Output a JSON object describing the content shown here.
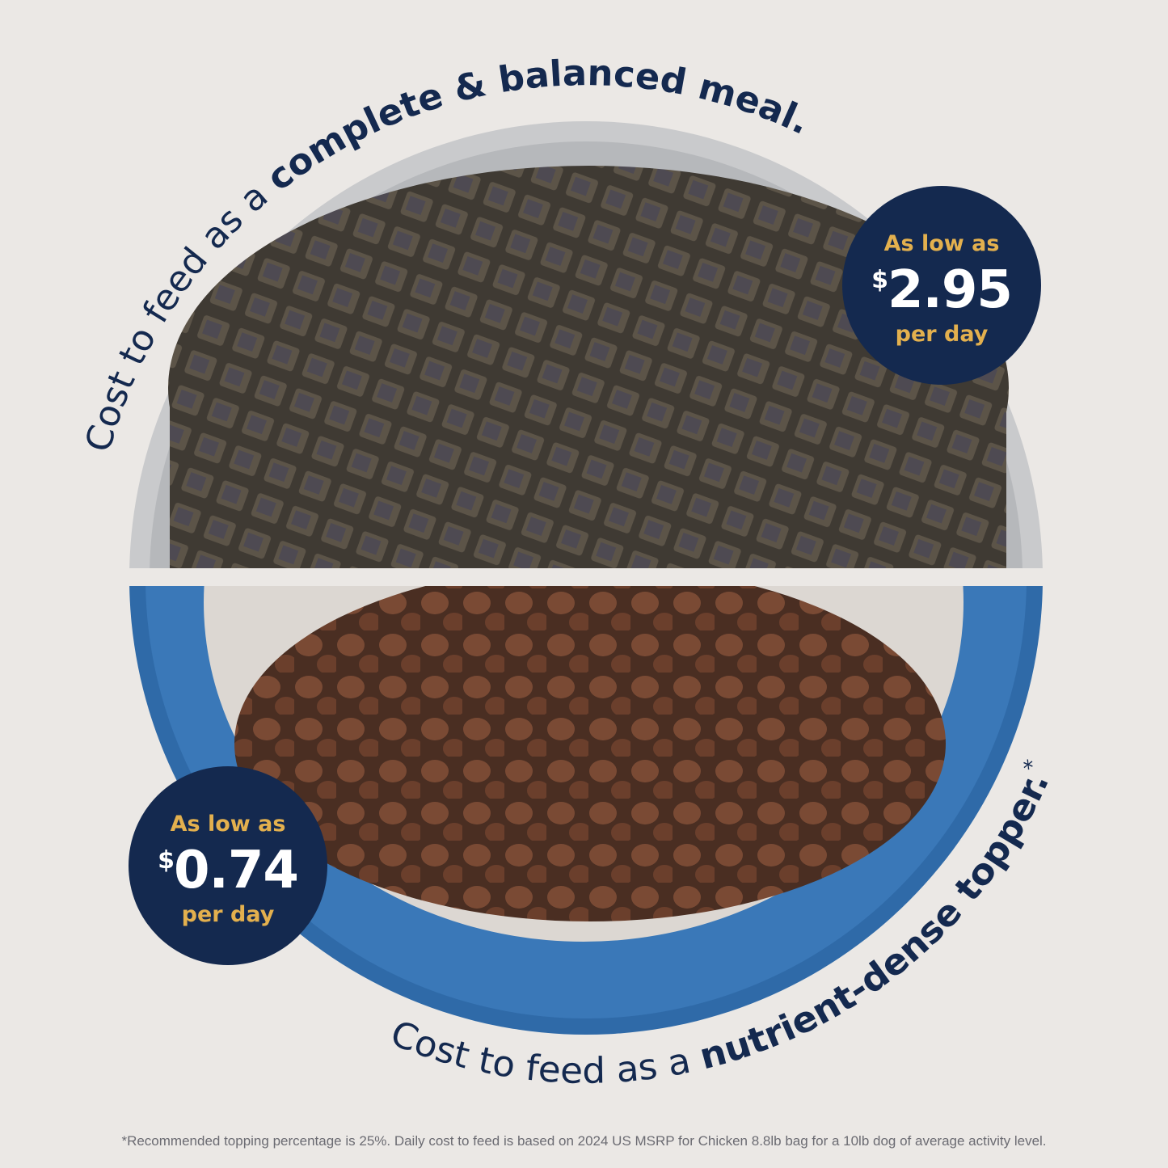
{
  "top_arc_text": {
    "regular": "Cost to feed as a ",
    "bold": "complete & balanced meal."
  },
  "bottom_arc_text": {
    "regular": "Cost to feed as a ",
    "bold": "nutrient-dense topper.",
    "mark": "*"
  },
  "badge_top": {
    "label": "As low as",
    "currency": "$",
    "amount": "2.95",
    "unit": "per day"
  },
  "badge_bottom": {
    "label": "As low as",
    "currency": "$",
    "amount": "0.74",
    "unit": "per day"
  },
  "footnote": "*Recommended topping percentage is 25%. Daily cost to feed is based on 2024 US MSRP for Chicken 8.8lb bag for a 10lb dog of average activity level.",
  "colors": {
    "navy": "#14294f",
    "gold": "#e3b04e",
    "blue_bowl": "#2f6aa8",
    "background": "#ebe8e5"
  }
}
